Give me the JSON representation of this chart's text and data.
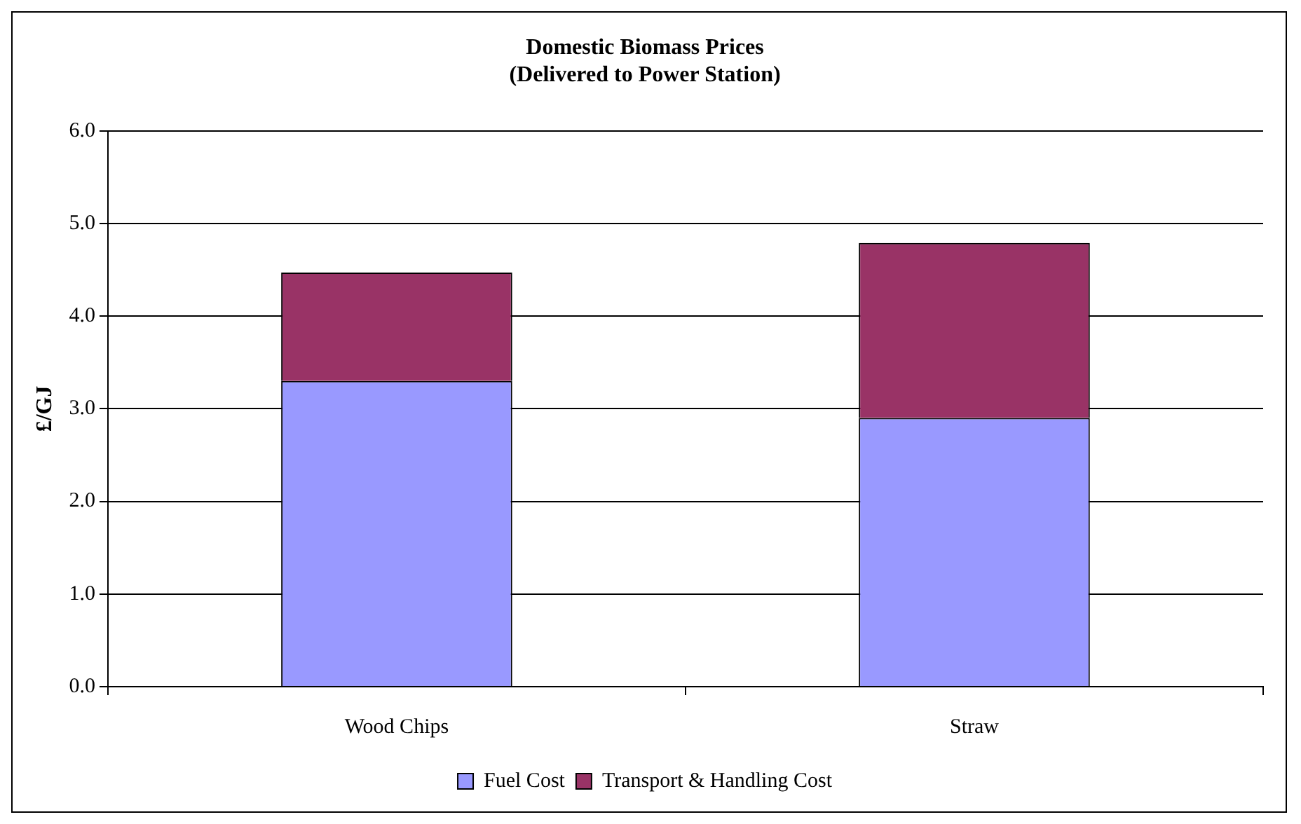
{
  "chart_data": {
    "type": "bar",
    "title": "Domestic Biomass Prices\n(Delivered to Power Station)",
    "ylabel": "£/GJ",
    "categories": [
      "Wood Chips",
      "Straw"
    ],
    "stacked": true,
    "series": [
      {
        "name": "Fuel Cost",
        "color": "#9999ff",
        "values": [
          3.3,
          2.9
        ]
      },
      {
        "name": "Transport & Handling Cost",
        "color": "#993366",
        "values": [
          1.17,
          1.89
        ]
      }
    ],
    "ylim": [
      0,
      6
    ],
    "yticks": [
      {
        "value": 0,
        "label": "0.0"
      },
      {
        "value": 1,
        "label": "1.0"
      },
      {
        "value": 2,
        "label": "2.0"
      },
      {
        "value": 3,
        "label": "3.0"
      },
      {
        "value": 4,
        "label": "4.0"
      },
      {
        "value": 5,
        "label": "5.0"
      },
      {
        "value": 6,
        "label": "6.0"
      }
    ],
    "grid": "y",
    "legend": "bottom"
  }
}
